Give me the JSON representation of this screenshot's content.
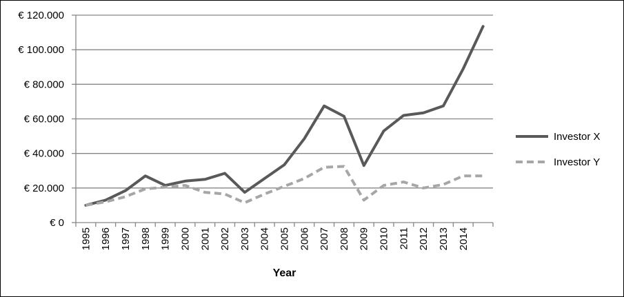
{
  "chart_data": {
    "type": "line",
    "title": "",
    "xlabel": "Year",
    "ylabel": "",
    "ylim": [
      0,
      120000
    ],
    "y_ticks": [
      0,
      20000,
      40000,
      60000,
      80000,
      100000,
      120000
    ],
    "y_tick_labels": [
      "€ 0",
      "€ 20.000",
      "€ 40.000",
      "€ 60.000",
      "€ 80.000",
      "€ 100.000",
      "€ 120.000"
    ],
    "categories": [
      "1995",
      "1996",
      "1997",
      "1998",
      "1999",
      "2000",
      "2001",
      "2002",
      "2003",
      "2004",
      "2005",
      "2006",
      "2007",
      "2008",
      "2009",
      "2010",
      "2011",
      "2012",
      "2013",
      "2014",
      ""
    ],
    "grid": "horizontal",
    "legend_position": "right",
    "series": [
      {
        "name": "Investor X",
        "color": "#595959",
        "dash": "solid",
        "values": [
          10000,
          13000,
          18500,
          27000,
          21500,
          24000,
          25000,
          28500,
          17500,
          25500,
          33500,
          48500,
          67500,
          61500,
          33000,
          53000,
          62000,
          63500,
          67500,
          89000,
          113500
        ]
      },
      {
        "name": "Investor Y",
        "color": "#a6a6a6",
        "dash": "dashed",
        "values": [
          10000,
          12000,
          15000,
          19500,
          20500,
          21500,
          17500,
          16500,
          11500,
          16500,
          21000,
          25500,
          32000,
          32500,
          13000,
          21500,
          23500,
          20000,
          22000,
          27000,
          27000
        ]
      }
    ]
  }
}
